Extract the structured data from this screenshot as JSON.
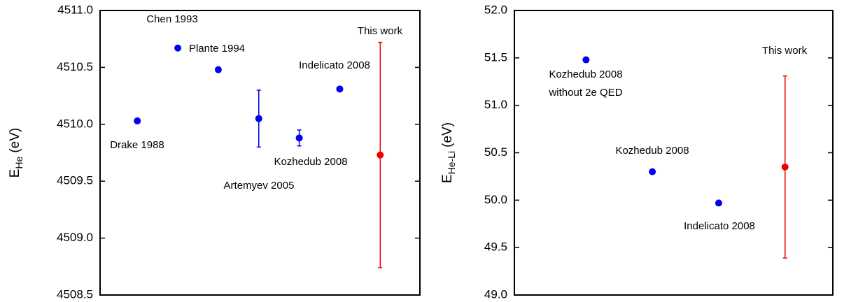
{
  "chart_data": [
    {
      "type": "scatter",
      "ylabel": {
        "main": "E",
        "sub": "He",
        "unit": "(eV)"
      },
      "categories": [
        "Drake 1988",
        "Chen 1993",
        "Plante 1994",
        "Artemyev 2005",
        "Kozhedub 2008",
        "Indelicato 2008",
        "This work"
      ],
      "values": [
        4510.03,
        4510.67,
        4510.48,
        4510.05,
        4509.88,
        4510.31,
        4509.73
      ],
      "errors": [
        null,
        null,
        null,
        0.25,
        0.07,
        null,
        0.99
      ],
      "colors": [
        "#0000ee",
        "#0000ee",
        "#0000ee",
        "#0000ee",
        "#0000ee",
        "#0000ee",
        "#ee0000"
      ],
      "ylim": [
        4508.5,
        4511.0
      ],
      "yticks": [
        4508.5,
        {
          "value": 4509,
          "label": "4509.0"
        },
        4509.5,
        {
          "value": 4510,
          "label": "4510.0"
        },
        4510.5,
        {
          "value": 4511,
          "label": "4511.0"
        }
      ]
    },
    {
      "type": "scatter",
      "ylabel": {
        "main": "E",
        "sub": "He-Li",
        "unit": "(eV)"
      },
      "categories": [
        [
          "Kozhedub 2008",
          "without 2e QED"
        ],
        "Kozhedub 2008",
        "Indelicato 2008",
        "This work"
      ],
      "values": [
        51.48,
        50.3,
        49.97,
        50.35
      ],
      "errors": [
        null,
        null,
        null,
        0.96
      ],
      "colors": [
        "#0000ee",
        "#0000ee",
        "#0000ee",
        "#ee0000"
      ],
      "ylim": [
        49.0,
        52.0
      ],
      "yticks": [
        {
          "value": 49,
          "label": "49.0"
        },
        49.5,
        {
          "value": 50,
          "label": "50.0"
        },
        50.5,
        {
          "value": 51,
          "label": "51.0"
        },
        51.5,
        {
          "value": 52,
          "label": "52.0"
        }
      ]
    }
  ]
}
